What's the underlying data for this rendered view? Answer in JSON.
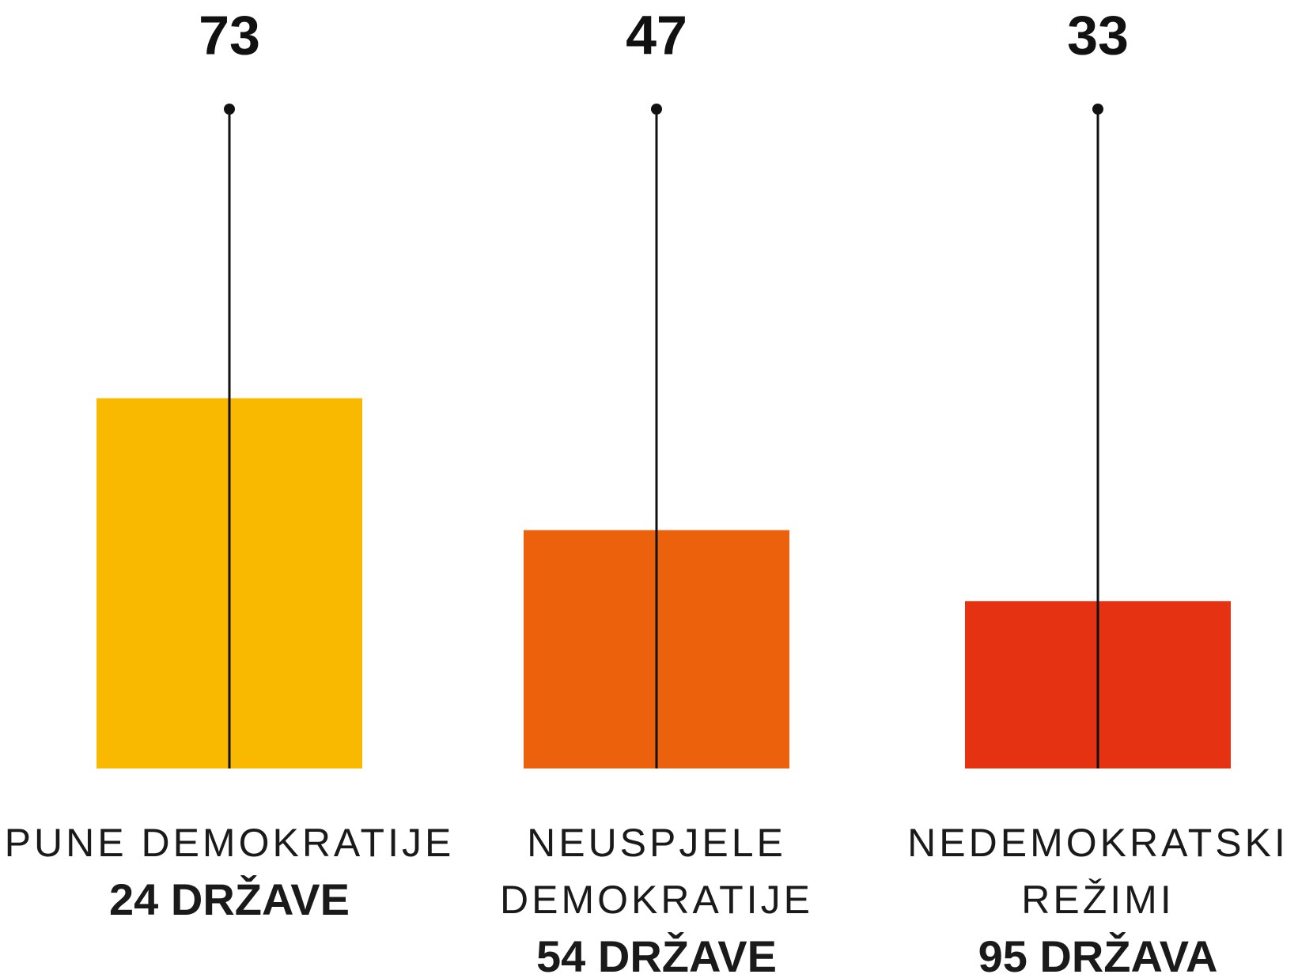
{
  "chart_data": {
    "type": "bar",
    "categories": [
      [
        "PUNE DEMOKRATIJE"
      ],
      [
        "NEUSPJELE",
        "DEMOKRATIJE"
      ],
      [
        "NEDEMOKRATSKI",
        "REŽIMI"
      ]
    ],
    "counts": [
      "24 DRŽAVE",
      "54 DRŽAVE",
      "95 DRŽAVA"
    ],
    "values": [
      73,
      47,
      33
    ],
    "colors": [
      "#f9b900",
      "#eb610c",
      "#e43212"
    ],
    "ylim": [
      0,
      130
    ]
  }
}
